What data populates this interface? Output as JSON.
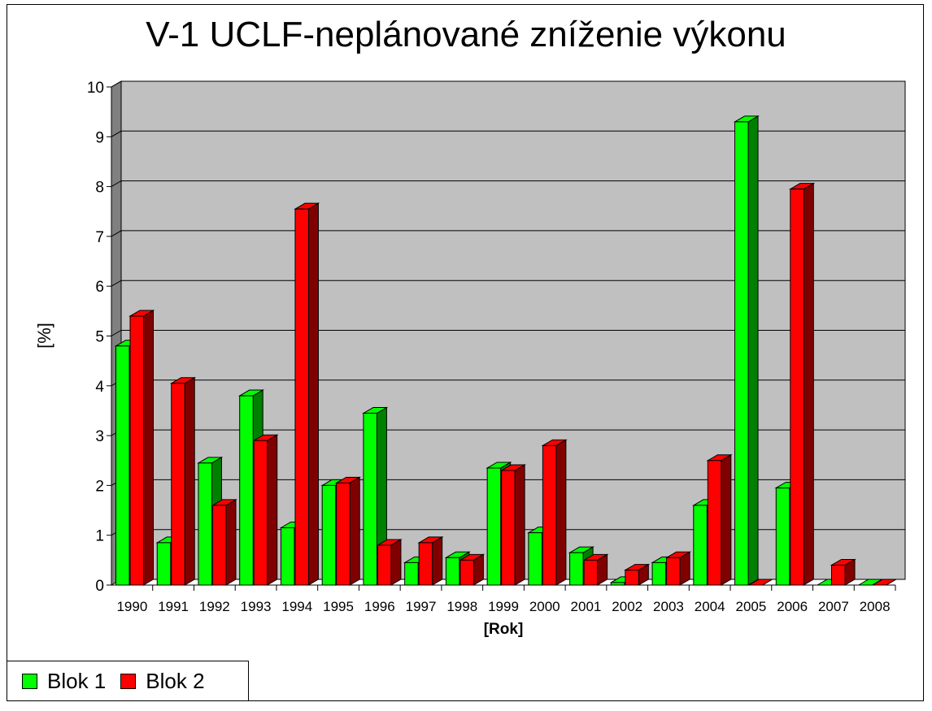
{
  "chart_data": {
    "type": "bar",
    "title": "V-1  UCLF-neplánované zníženie výkonu",
    "xlabel": "[Rok]",
    "ylabel": "[%]",
    "ylim": [
      0,
      10
    ],
    "yticks": [
      "0",
      "1",
      "2",
      "3",
      "4",
      "5",
      "6",
      "7",
      "8",
      "9",
      "10"
    ],
    "grid": true,
    "three_d": true,
    "legend_position": "bottom-left",
    "categories": [
      "1990",
      "1991",
      "1992",
      "1993",
      "1994",
      "1995",
      "1996",
      "1997",
      "1998",
      "1999",
      "2000",
      "2001",
      "2002",
      "2003",
      "2004",
      "2005",
      "2006",
      "2007",
      "2008"
    ],
    "series": [
      {
        "name": "Blok 1",
        "color": "#00ff00",
        "side_color": "#008000",
        "values": [
          4.8,
          0.85,
          2.45,
          3.8,
          1.15,
          2.0,
          3.45,
          0.45,
          0.55,
          2.35,
          1.05,
          0.65,
          0.05,
          0.45,
          1.6,
          9.3,
          1.95,
          0.0,
          0.0
        ]
      },
      {
        "name": "Blok 2",
        "color": "#ff0000",
        "side_color": "#800000",
        "values": [
          5.4,
          4.05,
          1.6,
          2.9,
          7.55,
          2.05,
          0.8,
          0.85,
          0.5,
          2.3,
          2.8,
          0.5,
          0.3,
          0.55,
          2.5,
          0.0,
          7.95,
          0.4,
          0.0
        ]
      }
    ],
    "colors": {
      "plot_back": "#c0c0c0",
      "plot_side": "#808080",
      "grid": "#000000"
    }
  }
}
